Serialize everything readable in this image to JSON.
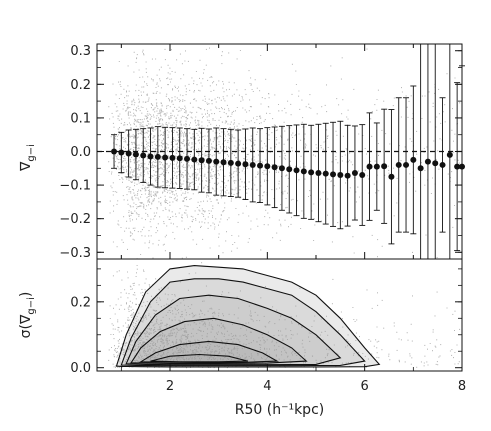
{
  "chart_data": [
    {
      "type": "scatter",
      "panel": "top",
      "ylabel": "∇",
      "ylabel_sub": "g−i",
      "ylim": [
        -0.32,
        0.32
      ],
      "yticks": [
        -0.3,
        -0.2,
        -0.1,
        0.0,
        0.1,
        0.2,
        0.3
      ],
      "ytick_labels": [
        "−0.3",
        "−0.2",
        "−0.1",
        "0.0",
        "0.1",
        "0.2",
        "0.3"
      ],
      "xlim": [
        0.5,
        8.0
      ],
      "reference_line": {
        "y": 0.0,
        "style": "dashed"
      },
      "background": "grey point cloud of individual galaxies",
      "series": [
        {
          "type": "scatter-errorbar",
          "x": [
            0.85,
            1.0,
            1.15,
            1.3,
            1.45,
            1.6,
            1.75,
            1.9,
            2.05,
            2.2,
            2.35,
            2.5,
            2.65,
            2.8,
            2.95,
            3.1,
            3.25,
            3.4,
            3.55,
            3.7,
            3.85,
            4.0,
            4.15,
            4.3,
            4.45,
            4.6,
            4.75,
            4.9,
            5.05,
            5.2,
            5.35,
            5.5,
            5.65,
            5.8,
            5.95,
            6.1,
            6.25,
            6.4,
            6.55,
            6.7,
            6.85,
            7.0,
            7.15,
            7.3,
            7.45,
            7.6,
            7.75,
            7.9,
            8.0
          ],
          "y": [
            0.0,
            -0.003,
            -0.006,
            -0.009,
            -0.012,
            -0.015,
            -0.016,
            -0.018,
            -0.019,
            -0.02,
            -0.022,
            -0.024,
            -0.026,
            -0.028,
            -0.03,
            -0.032,
            -0.034,
            -0.036,
            -0.038,
            -0.04,
            -0.042,
            -0.044,
            -0.047,
            -0.05,
            -0.053,
            -0.056,
            -0.059,
            -0.062,
            -0.064,
            -0.066,
            -0.068,
            -0.07,
            -0.072,
            -0.064,
            -0.07,
            -0.045,
            -0.045,
            -0.044,
            -0.075,
            -0.04,
            -0.04,
            -0.025,
            -0.05,
            -0.03,
            -0.035,
            -0.04,
            -0.01,
            -0.045,
            -0.045
          ],
          "err": [
            0.05,
            0.06,
            0.07,
            0.075,
            0.08,
            0.085,
            0.09,
            0.09,
            0.09,
            0.09,
            0.09,
            0.09,
            0.095,
            0.095,
            0.1,
            0.1,
            0.1,
            0.1,
            0.105,
            0.11,
            0.11,
            0.115,
            0.12,
            0.125,
            0.13,
            0.135,
            0.14,
            0.14,
            0.145,
            0.15,
            0.155,
            0.16,
            0.15,
            0.14,
            0.15,
            0.16,
            0.13,
            0.17,
            0.2,
            0.2,
            0.2,
            0.22,
            0.45,
            0.45,
            0.45,
            0.2,
            0.35,
            0.25,
            0.3
          ]
        }
      ]
    },
    {
      "type": "contour",
      "panel": "bottom",
      "xlabel": "R50 (h⁻¹kpc)",
      "ylabel": "σ(∇",
      "ylabel_sub": "g−i",
      "ylabel_close": ")",
      "xlim": [
        0.5,
        8.0
      ],
      "xticks": [
        2,
        4,
        6,
        8
      ],
      "xtick_labels": [
        "2",
        "4",
        "6",
        "8"
      ],
      "ylim": [
        -0.01,
        0.33
      ],
      "yticks": [
        0.0,
        0.2
      ],
      "ytick_labels": [
        "0.0",
        "0.2"
      ],
      "background": "grey point cloud of individual galaxies",
      "contours": [
        {
          "level": 1,
          "x": [
            0.9,
            1.1,
            1.5,
            2.0,
            2.5,
            3.0,
            3.5,
            4.0,
            4.5,
            5.0,
            5.5,
            6.0,
            6.3,
            6.0,
            5.0,
            4.0,
            3.0,
            2.0,
            1.4,
            1.0,
            0.9
          ],
          "y": [
            0.005,
            0.1,
            0.23,
            0.3,
            0.31,
            0.305,
            0.3,
            0.28,
            0.26,
            0.22,
            0.15,
            0.06,
            0.01,
            0.003,
            0.002,
            0.002,
            0.002,
            0.002,
            0.003,
            0.004,
            0.005
          ]
        },
        {
          "level": 2,
          "x": [
            1.0,
            1.2,
            1.6,
            2.0,
            2.5,
            3.0,
            3.5,
            4.0,
            4.5,
            5.0,
            5.5,
            6.0,
            5.5,
            4.5,
            3.5,
            2.5,
            1.8,
            1.3,
            1.0
          ],
          "y": [
            0.008,
            0.09,
            0.2,
            0.26,
            0.27,
            0.27,
            0.26,
            0.24,
            0.22,
            0.17,
            0.1,
            0.02,
            0.007,
            0.006,
            0.006,
            0.006,
            0.006,
            0.007,
            0.008
          ]
        },
        {
          "level": 3,
          "x": [
            1.1,
            1.3,
            1.7,
            2.2,
            2.8,
            3.4,
            4.0,
            4.5,
            5.0,
            5.5,
            5.0,
            4.0,
            3.0,
            2.0,
            1.5,
            1.1
          ],
          "y": [
            0.012,
            0.08,
            0.16,
            0.21,
            0.22,
            0.21,
            0.18,
            0.15,
            0.1,
            0.03,
            0.01,
            0.009,
            0.009,
            0.009,
            0.01,
            0.012
          ]
        },
        {
          "level": 4,
          "x": [
            1.2,
            1.4,
            1.8,
            2.3,
            2.9,
            3.5,
            4.0,
            4.5,
            4.8,
            4.0,
            3.0,
            2.0,
            1.5,
            1.2
          ],
          "y": [
            0.015,
            0.06,
            0.11,
            0.14,
            0.15,
            0.13,
            0.1,
            0.06,
            0.02,
            0.014,
            0.013,
            0.013,
            0.014,
            0.015
          ]
        },
        {
          "level": 5,
          "x": [
            1.4,
            1.7,
            2.2,
            2.8,
            3.4,
            3.9,
            4.2,
            3.5,
            2.5,
            1.8,
            1.4
          ],
          "y": [
            0.018,
            0.045,
            0.07,
            0.08,
            0.07,
            0.045,
            0.02,
            0.016,
            0.016,
            0.017,
            0.018
          ]
        },
        {
          "level": 6,
          "x": [
            1.6,
            2.0,
            2.6,
            3.2,
            3.6,
            3.0,
            2.2,
            1.6
          ],
          "y": [
            0.02,
            0.035,
            0.04,
            0.035,
            0.02,
            0.018,
            0.018,
            0.02
          ]
        }
      ]
    }
  ]
}
